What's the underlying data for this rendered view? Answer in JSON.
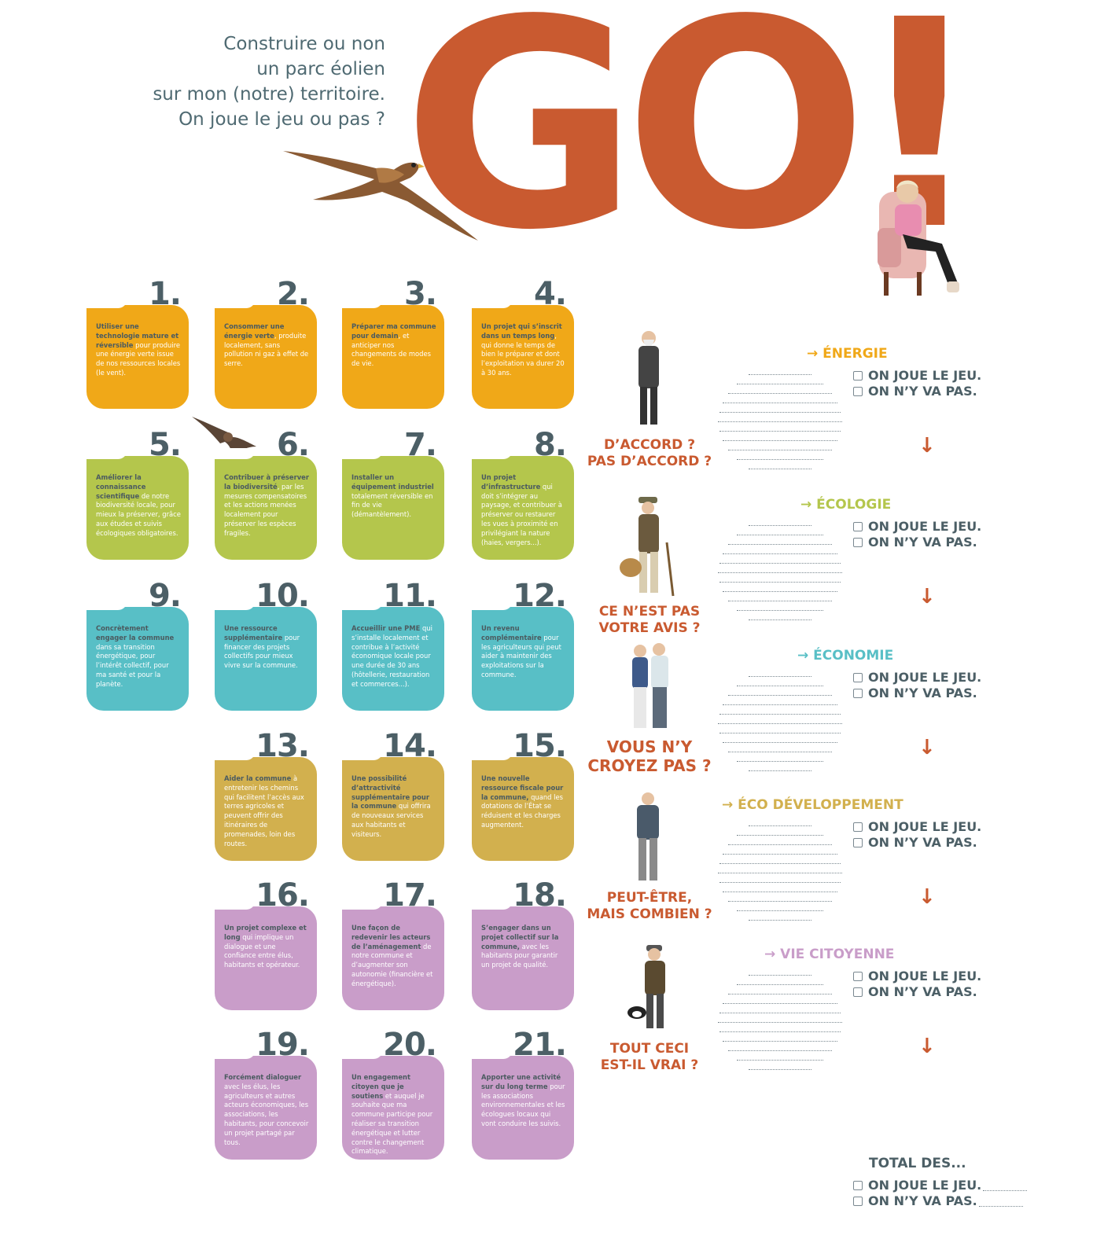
{
  "header": {
    "tagline": [
      "Construire ou non",
      "un parc éolien",
      "sur mon (notre) territoire.",
      "On joue le jeu ou pas ?"
    ],
    "big_title": "GO!"
  },
  "cards": [
    {
      "num": "1.",
      "bold": "Utiliser une technologie mature et réversible",
      "rest": " pour produire une énergie verte issue de nos ressources locales (le vent)."
    },
    {
      "num": "2.",
      "bold": "Consommer une énergie verte",
      "rest": ", produite localement, sans pollution ni gaz à effet de serre."
    },
    {
      "num": "3.",
      "bold": "Préparer ma commune pour demain",
      "rest": ", et anticiper nos changements de modes de vie."
    },
    {
      "num": "4.",
      "bold": "Un projet qui s’inscrit dans un temps long",
      "rest": ", qui donne le temps de bien le préparer et dont l’exploitation va durer 20 à 30 ans."
    },
    {
      "num": "5.",
      "bold": "Améliorer la connaissance scientifique",
      "rest": " de notre biodiversité locale, pour mieux la préserver, grâce aux études et suivis écologiques obligatoires."
    },
    {
      "num": "6.",
      "bold": "Contribuer à préserver la biodiversité",
      "rest": ", par les mesures compensatoires et les actions menées localement pour préserver les espèces fragiles."
    },
    {
      "num": "7.",
      "bold": "Installer un équipement industriel",
      "rest": " totalement réversible en fin de vie (démantèlement)."
    },
    {
      "num": "8.",
      "bold": "Un projet d’infrastructure",
      "rest": " qui doit s’intégrer au paysage, et contribuer à préserver ou restaurer les vues à proximité en privilégiant la nature (haies, vergers...)."
    },
    {
      "num": "9.",
      "bold": "Concrètement engager la commune",
      "rest": " dans sa transition énergétique, pour l’intérêt collectif, pour ma santé et pour la planète."
    },
    {
      "num": "10.",
      "bold": "Une ressource supplémentaire",
      "rest": " pour financer des projets collectifs pour mieux vivre sur la commune."
    },
    {
      "num": "11.",
      "bold": "Accueillir une PME",
      "rest": " qui s’installe localement et contribue à l’activité économique locale pour une durée de 30 ans (hôtellerie, restauration et commerces...)."
    },
    {
      "num": "12.",
      "bold": "Un revenu complémentaire",
      "rest": " pour les agriculteurs qui peut aider à maintenir des exploitations sur la commune."
    },
    {
      "num": "13.",
      "bold": "Aider la commune",
      "rest": " à entretenir les chemins qui facilitent l’accès aux terres agricoles et peuvent offrir des itinéraires de promenades, loin des routes."
    },
    {
      "num": "14.",
      "bold": "Une possibilité d’attractivité supplémentaire pour la commune",
      "rest": " qui offrira de nouveaux services aux habitants et visiteurs."
    },
    {
      "num": "15.",
      "bold": "Une nouvelle ressource fiscale pour la commune,",
      "rest": " quand les dotations de l’État se réduisent et les charges augmentent."
    },
    {
      "num": "16.",
      "bold": "Un projet complexe et long",
      "rest": " qui implique un dialogue et une confiance entre élus, habitants et opérateur."
    },
    {
      "num": "17.",
      "bold": "Une façon de redevenir les acteurs de l’aménagement",
      "rest": " de notre commune et d’augmenter son autonomie (financière et énergétique)."
    },
    {
      "num": "18.",
      "bold": "S’engager dans un projet collectif sur la commune,",
      "rest": " avec les habitants pour garantir un projet de qualité."
    },
    {
      "num": "19.",
      "bold": "Forcément dialoguer",
      "rest": " avec les élus, les agriculteurs et autres acteurs économiques, les associations, les habitants, pour concevoir un projet partagé par tous."
    },
    {
      "num": "20.",
      "bold": "Un engagement citoyen que je soutiens",
      "rest": " et auquel je souhaite que ma commune participe pour réaliser sa transition énergétique et lutter contre le changement climatique."
    },
    {
      "num": "21.",
      "bold": "Apporter une activité sur du long terme",
      "rest": " pour les associations environnementales et les écologues locaux qui vont conduire les suivis."
    }
  ],
  "sections": [
    {
      "theme": "→ ÉNERGIE",
      "color": "#f0a818",
      "question": [
        "D’ACCORD ?",
        "PAS D’ACCORD ?"
      ]
    },
    {
      "theme": "→ ÉCOLOGIE",
      "color": "#b4c64c",
      "question": [
        "CE N’EST PAS",
        "VOTRE AVIS ?"
      ]
    },
    {
      "theme": "→ ÉCONOMIE",
      "color": "#58bfc6",
      "question": [
        "VOUS N’Y",
        "CROYEZ PAS ?"
      ]
    },
    {
      "theme": "→ ÉCO DÉVELOPPEMENT",
      "color": "#d2b04e",
      "question": [
        "PEUT-ÊTRE,",
        "MAIS COMBIEN ?"
      ]
    },
    {
      "theme": "→ VIE CITOYENNE",
      "color": "#c99dc9",
      "question": [
        "TOUT CECI",
        "EST-IL VRAI ?"
      ]
    }
  ],
  "options": {
    "yes": "ON JOUE LE JEU.",
    "no": "ON N’Y VA PAS."
  },
  "arrow": "↓",
  "total": {
    "title": "TOTAL DES...",
    "yes": "ON JOUE LE JEU.",
    "no": "ON N’Y VA PAS."
  }
}
